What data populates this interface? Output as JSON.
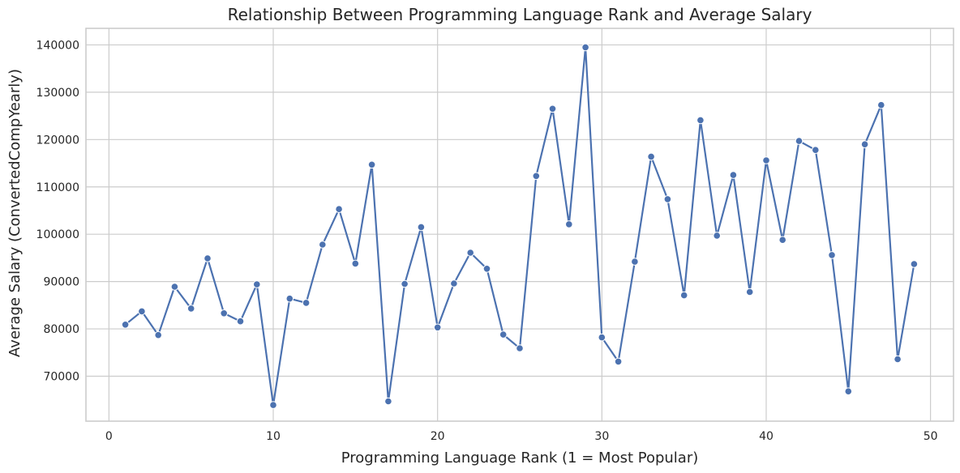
{
  "chart_data": {
    "type": "line",
    "title": "Relationship Between Programming Language Rank and Average Salary",
    "xlabel": "Programming Language Rank (1 = Most Popular)",
    "ylabel": "Average Salary (ConvertedCompYearly)",
    "xlim": [
      -1.4,
      51.4
    ],
    "ylim": [
      60500,
      143500
    ],
    "xticks": [
      0,
      10,
      20,
      30,
      40,
      50
    ],
    "yticks": [
      70000,
      80000,
      90000,
      100000,
      110000,
      120000,
      130000,
      140000
    ],
    "grid": true,
    "marker": "circle",
    "color": "#4c72b0",
    "x": [
      1,
      2,
      3,
      4,
      5,
      6,
      7,
      8,
      9,
      10,
      11,
      12,
      13,
      14,
      15,
      16,
      17,
      18,
      19,
      20,
      21,
      22,
      23,
      24,
      25,
      26,
      27,
      28,
      29,
      30,
      31,
      32,
      33,
      34,
      35,
      36,
      37,
      38,
      39,
      40,
      41,
      42,
      43,
      44,
      45,
      46,
      47,
      48,
      49
    ],
    "y": [
      80900,
      83700,
      78700,
      88900,
      84300,
      94900,
      83300,
      81600,
      89400,
      63900,
      86400,
      85500,
      97800,
      105300,
      93800,
      114700,
      64700,
      89500,
      101500,
      80300,
      89600,
      96100,
      92700,
      78800,
      75900,
      112300,
      126500,
      102100,
      139500,
      78200,
      73100,
      94200,
      116400,
      107400,
      87100,
      124100,
      99700,
      112500,
      87800,
      115600,
      98800,
      119700,
      117800,
      95600,
      66800,
      119000,
      127300,
      73600,
      93700
    ]
  }
}
